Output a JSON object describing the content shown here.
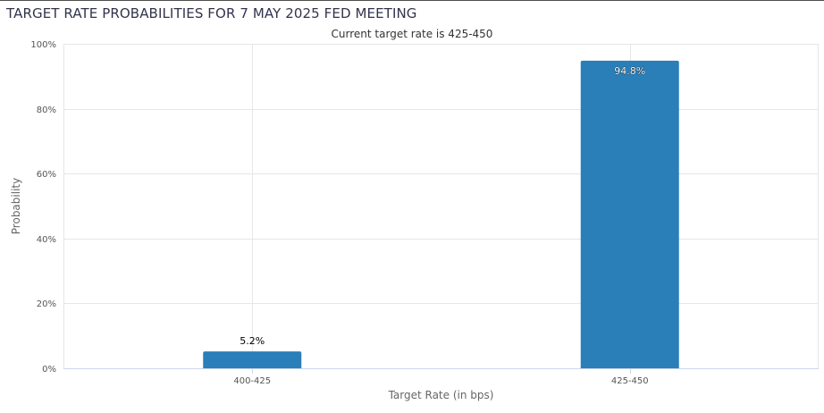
{
  "chart_data": {
    "type": "bar",
    "title": "TARGET RATE PROBABILITIES FOR 7 MAY 2025 FED MEETING",
    "subtitle": "Current target rate is 425-450",
    "xlabel": "Target Rate (in bps)",
    "ylabel": "Probability",
    "categories": [
      "400-425",
      "425-450"
    ],
    "values": [
      5.2,
      94.8
    ],
    "value_labels": [
      "5.2%",
      "94.8%"
    ],
    "ylim": [
      0,
      100
    ],
    "yticks": [
      0,
      20,
      40,
      60,
      80,
      100
    ],
    "ytick_labels": [
      "0%",
      "20%",
      "40%",
      "60%",
      "80%",
      "100%"
    ],
    "grid": true,
    "bar_color": "#2a7fb9"
  }
}
